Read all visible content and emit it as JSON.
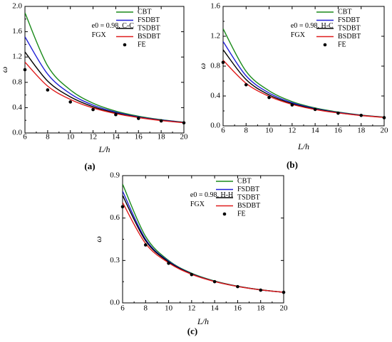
{
  "chart_data": [
    {
      "type": "line",
      "panel_label": "(a)",
      "annotation": [
        "e0 = 0.98, C-C",
        "FGX"
      ],
      "xlabel": "L/h",
      "ylabel": "ω",
      "xlim": [
        6,
        20
      ],
      "ylim": [
        0.0,
        2.0
      ],
      "xticks": [
        6,
        8,
        10,
        12,
        14,
        16,
        18,
        20
      ],
      "yticks": [
        0.0,
        0.4,
        0.8,
        1.2,
        1.6,
        2.0
      ],
      "ytick_labels": [
        "0.0",
        "0.4",
        "0.8",
        "1.2",
        "1.6",
        "2.0"
      ],
      "legend_position": "top-right",
      "x": [
        6,
        8,
        10,
        12,
        14,
        16,
        18,
        20
      ],
      "series": [
        {
          "name": "CBT",
          "values": [
            1.9,
            1.06,
            0.68,
            0.47,
            0.345,
            0.265,
            0.21,
            0.17
          ]
        },
        {
          "name": "FSDBT",
          "values": [
            1.52,
            0.93,
            0.62,
            0.44,
            0.33,
            0.255,
            0.205,
            0.167
          ]
        },
        {
          "name": "TSDBT",
          "values": [
            1.28,
            0.82,
            0.57,
            0.415,
            0.315,
            0.248,
            0.2,
            0.164
          ]
        },
        {
          "name": "BSDBT",
          "values": [
            1.12,
            0.74,
            0.53,
            0.395,
            0.305,
            0.243,
            0.196,
            0.162
          ]
        },
        {
          "name": "FE",
          "values": [
            1.0,
            0.68,
            0.49,
            0.37,
            0.29,
            0.23,
            0.19,
            0.16
          ],
          "marker": "dot"
        }
      ]
    },
    {
      "type": "line",
      "panel_label": "(b)",
      "annotation": [
        "e0 = 0.98, H-C",
        "FGX"
      ],
      "xlabel": "L/h",
      "ylabel": "ω",
      "xlim": [
        6,
        20
      ],
      "ylim": [
        0.0,
        1.6
      ],
      "xticks": [
        6,
        8,
        10,
        12,
        14,
        16,
        18,
        20
      ],
      "yticks": [
        0.0,
        0.4,
        0.8,
        1.2,
        1.6
      ],
      "ytick_labels": [
        "0.0",
        "0.4",
        "0.8",
        "1.2",
        "1.6"
      ],
      "legend_position": "top-right",
      "x": [
        6,
        8,
        10,
        12,
        14,
        16,
        18,
        20
      ],
      "series": [
        {
          "name": "CBT",
          "values": [
            1.3,
            0.73,
            0.47,
            0.325,
            0.24,
            0.185,
            0.145,
            0.117
          ]
        },
        {
          "name": "FSDBT",
          "values": [
            1.13,
            0.67,
            0.44,
            0.31,
            0.232,
            0.18,
            0.142,
            0.115
          ]
        },
        {
          "name": "TSDBT",
          "values": [
            1.02,
            0.62,
            0.415,
            0.297,
            0.225,
            0.176,
            0.14,
            0.114
          ]
        },
        {
          "name": "BSDBT",
          "values": [
            0.88,
            0.57,
            0.395,
            0.287,
            0.219,
            0.173,
            0.138,
            0.113
          ]
        },
        {
          "name": "FE",
          "values": [
            0.85,
            0.55,
            0.38,
            0.28,
            0.22,
            0.17,
            0.14,
            0.11
          ],
          "marker": "dot"
        }
      ]
    },
    {
      "type": "line",
      "panel_label": "(c)",
      "annotation": [
        "e0 = 0.98, H-H",
        "FGX"
      ],
      "xlabel": "L/h",
      "ylabel": "ω",
      "xlim": [
        6,
        20
      ],
      "ylim": [
        0.0,
        0.9
      ],
      "xticks": [
        6,
        8,
        10,
        12,
        14,
        16,
        18,
        20
      ],
      "yticks": [
        0.0,
        0.3,
        0.6,
        0.9
      ],
      "ytick_labels": [
        "0.0",
        "0.3",
        "0.6",
        "0.9"
      ],
      "legend_position": "top-right",
      "x": [
        6,
        8,
        10,
        12,
        14,
        16,
        18,
        20
      ],
      "series": [
        {
          "name": "CBT",
          "values": [
            0.84,
            0.47,
            0.3,
            0.21,
            0.155,
            0.118,
            0.093,
            0.075
          ]
        },
        {
          "name": "FSDBT",
          "values": [
            0.79,
            0.45,
            0.295,
            0.207,
            0.153,
            0.117,
            0.092,
            0.075
          ]
        },
        {
          "name": "TSDBT",
          "values": [
            0.76,
            0.44,
            0.29,
            0.205,
            0.152,
            0.117,
            0.092,
            0.075
          ]
        },
        {
          "name": "BSDBT",
          "values": [
            0.71,
            0.42,
            0.283,
            0.202,
            0.151,
            0.116,
            0.092,
            0.075
          ]
        },
        {
          "name": "FE",
          "values": [
            0.68,
            0.41,
            0.28,
            0.2,
            0.15,
            0.115,
            0.09,
            0.075
          ],
          "marker": "dot"
        }
      ]
    }
  ],
  "series_colors": {
    "CBT": "#1a8a1a",
    "FSDBT": "#1f1fd6",
    "TSDBT": "#000000",
    "BSDBT": "#e01c1c",
    "FE": "#000000"
  }
}
